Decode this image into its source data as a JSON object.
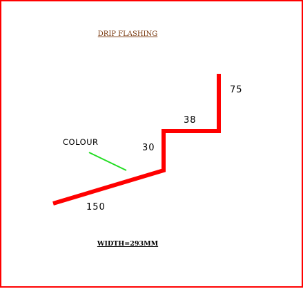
{
  "title": "DRIP FLASHING",
  "colour_label": "COLOUR",
  "dimensions": {
    "bottom": "150",
    "riser": "30",
    "step": "38",
    "top": "75"
  },
  "width_note": "WIDTH=293MM",
  "colors": {
    "border": "#ff0000",
    "profile": "#ff0000",
    "colour_indicator": "#22dd22",
    "title": "#7a3a10"
  }
}
